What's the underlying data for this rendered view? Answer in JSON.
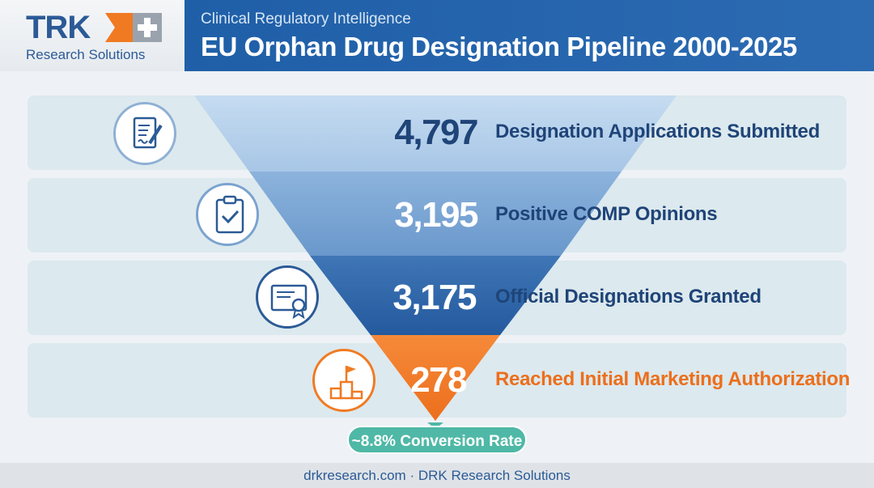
{
  "header": {
    "logo_text": "TRK",
    "logo_subtitle": "Research Solutions",
    "subtitle": "Clinical Regulatory Intelligence",
    "title": "EU Orphan Drug Designation Pipeline 2000-2025"
  },
  "colors": {
    "brand_blue": "#2b5a96",
    "header_blue": "#1f5fa8",
    "accent_orange": "#f07a22",
    "teal": "#4fb8a6",
    "row_bg": "#dce9ee"
  },
  "chart_data": {
    "type": "funnel",
    "stages": [
      {
        "label": "Designation Applications Submitted",
        "value": 4797,
        "value_text": "4,797",
        "icon": "document-pen-icon"
      },
      {
        "label": "Positive COMP Opinions",
        "value": 3195,
        "value_text": "3,195",
        "icon": "clipboard-check-icon"
      },
      {
        "label": "Official Designations Granted",
        "value": 3175,
        "value_text": "3,175",
        "icon": "certificate-icon"
      },
      {
        "label": "Reached Initial Marketing Authorization",
        "value": 278,
        "value_text": "278",
        "icon": "flag-podium-icon"
      }
    ],
    "annotation": "~8.8% Conversion Rate"
  },
  "footer": {
    "text": "drkresearch.com · DRK Research Solutions"
  }
}
